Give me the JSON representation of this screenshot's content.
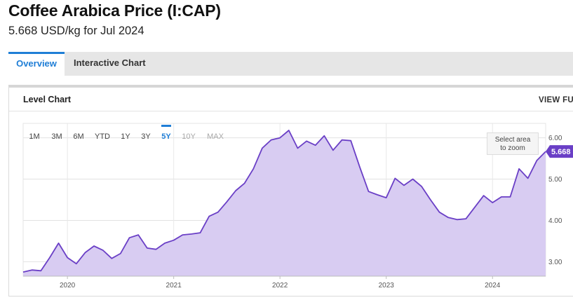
{
  "header": {
    "title": "Coffee Arabica Price (I:CAP)",
    "subtitle": "5.668 USD/kg for Jul 2024"
  },
  "tabs": [
    {
      "label": "Overview",
      "active": true
    },
    {
      "label": "Interactive Chart",
      "active": false
    }
  ],
  "panel": {
    "title": "Level Chart",
    "view_full": "VIEW FUL"
  },
  "range_buttons": [
    {
      "label": "1M",
      "state": "normal"
    },
    {
      "label": "3M",
      "state": "normal"
    },
    {
      "label": "6M",
      "state": "normal"
    },
    {
      "label": "YTD",
      "state": "normal"
    },
    {
      "label": "1Y",
      "state": "normal"
    },
    {
      "label": "3Y",
      "state": "normal"
    },
    {
      "label": "5Y",
      "state": "active"
    },
    {
      "label": "10Y",
      "state": "disabled"
    },
    {
      "label": "MAX",
      "state": "disabled"
    }
  ],
  "zoom_hint": {
    "line1": "Select area",
    "line2": "to zoom"
  },
  "colors": {
    "accent": "#1f7ed6",
    "line": "#6a3fc6",
    "fill": "#d8ccf2",
    "last_badge": "#6a3fc6",
    "disabled": "#a8a8a8"
  },
  "chart_data": {
    "type": "area",
    "title": "",
    "xlabel": "",
    "ylabel": "",
    "x_ticks": [
      "2020",
      "2021",
      "2022",
      "2023",
      "2024"
    ],
    "y_ticks": [
      "3.00",
      "4.00",
      "5.00",
      "6.00"
    ],
    "ylim": [
      2.65,
      6.35
    ],
    "last_value": "5.668",
    "series": [
      {
        "values": [
          {
            "x": "2019-08",
            "y": 2.75
          },
          {
            "x": "2019-09",
            "y": 2.8
          },
          {
            "x": "2019-10",
            "y": 2.78
          },
          {
            "x": "2019-11",
            "y": 3.1
          },
          {
            "x": "2019-12",
            "y": 3.45
          },
          {
            "x": "2020-01",
            "y": 3.1
          },
          {
            "x": "2020-02",
            "y": 2.95
          },
          {
            "x": "2020-03",
            "y": 3.22
          },
          {
            "x": "2020-04",
            "y": 3.38
          },
          {
            "x": "2020-05",
            "y": 3.28
          },
          {
            "x": "2020-06",
            "y": 3.08
          },
          {
            "x": "2020-07",
            "y": 3.2
          },
          {
            "x": "2020-08",
            "y": 3.58
          },
          {
            "x": "2020-09",
            "y": 3.65
          },
          {
            "x": "2020-10",
            "y": 3.33
          },
          {
            "x": "2020-11",
            "y": 3.3
          },
          {
            "x": "2020-12",
            "y": 3.45
          },
          {
            "x": "2021-01",
            "y": 3.52
          },
          {
            "x": "2021-02",
            "y": 3.65
          },
          {
            "x": "2021-03",
            "y": 3.67
          },
          {
            "x": "2021-04",
            "y": 3.7
          },
          {
            "x": "2021-05",
            "y": 4.1
          },
          {
            "x": "2021-06",
            "y": 4.2
          },
          {
            "x": "2021-07",
            "y": 4.45
          },
          {
            "x": "2021-08",
            "y": 4.72
          },
          {
            "x": "2021-09",
            "y": 4.9
          },
          {
            "x": "2021-10",
            "y": 5.25
          },
          {
            "x": "2021-11",
            "y": 5.75
          },
          {
            "x": "2021-12",
            "y": 5.95
          },
          {
            "x": "2022-01",
            "y": 6.0
          },
          {
            "x": "2022-02",
            "y": 6.18
          },
          {
            "x": "2022-03",
            "y": 5.75
          },
          {
            "x": "2022-04",
            "y": 5.92
          },
          {
            "x": "2022-05",
            "y": 5.82
          },
          {
            "x": "2022-06",
            "y": 6.05
          },
          {
            "x": "2022-07",
            "y": 5.7
          },
          {
            "x": "2022-08",
            "y": 5.95
          },
          {
            "x": "2022-09",
            "y": 5.93
          },
          {
            "x": "2022-10",
            "y": 5.3
          },
          {
            "x": "2022-11",
            "y": 4.7
          },
          {
            "x": "2022-12",
            "y": 4.62
          },
          {
            "x": "2023-01",
            "y": 4.55
          },
          {
            "x": "2023-02",
            "y": 5.02
          },
          {
            "x": "2023-03",
            "y": 4.85
          },
          {
            "x": "2023-04",
            "y": 5.0
          },
          {
            "x": "2023-05",
            "y": 4.82
          },
          {
            "x": "2023-06",
            "y": 4.5
          },
          {
            "x": "2023-07",
            "y": 4.2
          },
          {
            "x": "2023-08",
            "y": 4.07
          },
          {
            "x": "2023-09",
            "y": 4.02
          },
          {
            "x": "2023-10",
            "y": 4.04
          },
          {
            "x": "2023-11",
            "y": 4.32
          },
          {
            "x": "2023-12",
            "y": 4.6
          },
          {
            "x": "2024-01",
            "y": 4.43
          },
          {
            "x": "2024-02",
            "y": 4.57
          },
          {
            "x": "2024-03",
            "y": 4.57
          },
          {
            "x": "2024-04",
            "y": 5.25
          },
          {
            "x": "2024-05",
            "y": 5.02
          },
          {
            "x": "2024-06",
            "y": 5.45
          },
          {
            "x": "2024-07",
            "y": 5.668
          }
        ]
      }
    ]
  }
}
